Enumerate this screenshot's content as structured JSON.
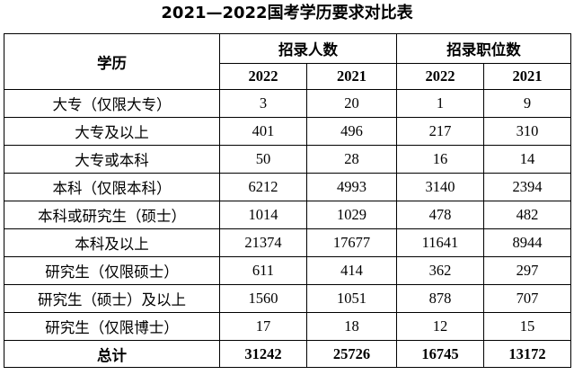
{
  "title": "2021—2022国考学历要求对比表",
  "headers": {
    "education": "学历",
    "recruit_people": "招录人数",
    "recruit_positions": "招录职位数",
    "years": [
      "2022",
      "2021",
      "2022",
      "2021"
    ]
  },
  "rows": [
    {
      "label": "大专（仅限大专）",
      "people_2022": "3",
      "people_2021": "20",
      "positions_2022": "1",
      "positions_2021": "9"
    },
    {
      "label": "大专及以上",
      "people_2022": "401",
      "people_2021": "496",
      "positions_2022": "217",
      "positions_2021": "310"
    },
    {
      "label": "大专或本科",
      "people_2022": "50",
      "people_2021": "28",
      "positions_2022": "16",
      "positions_2021": "14"
    },
    {
      "label": "本科（仅限本科）",
      "people_2022": "6212",
      "people_2021": "4993",
      "positions_2022": "3140",
      "positions_2021": "2394"
    },
    {
      "label": "本科或研究生（硕士）",
      "people_2022": "1014",
      "people_2021": "1029",
      "positions_2022": "478",
      "positions_2021": "482"
    },
    {
      "label": "本科及以上",
      "people_2022": "21374",
      "people_2021": "17677",
      "positions_2022": "11641",
      "positions_2021": "8944"
    },
    {
      "label": "研究生（仅限硕士）",
      "people_2022": "611",
      "people_2021": "414",
      "positions_2022": "362",
      "positions_2021": "297"
    },
    {
      "label": "研究生（硕士）及以上",
      "people_2022": "1560",
      "people_2021": "1051",
      "positions_2022": "878",
      "positions_2021": "707"
    },
    {
      "label": "研究生（仅限博士）",
      "people_2022": "17",
      "people_2021": "18",
      "positions_2022": "12",
      "positions_2021": "15"
    }
  ],
  "total": {
    "label": "总计",
    "people_2022": "31242",
    "people_2021": "25726",
    "positions_2022": "16745",
    "positions_2021": "13172"
  }
}
